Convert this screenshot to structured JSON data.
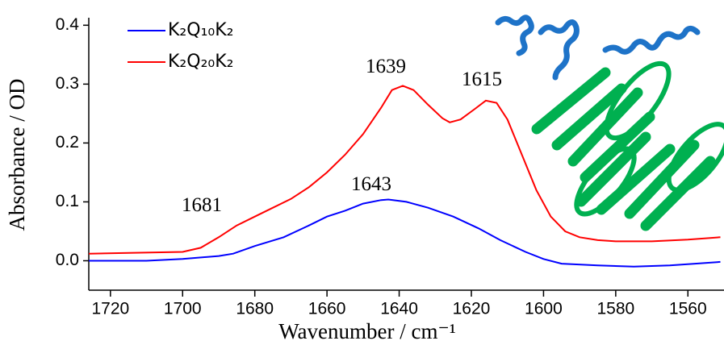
{
  "chart_data": {
    "type": "line",
    "xlabel": "Wavenumber / cm⁻¹",
    "ylabel": "Absorbance / OD",
    "xlim": [
      1726,
      1550
    ],
    "ylim": [
      -0.05,
      0.41
    ],
    "xticks": [
      1720,
      1700,
      1680,
      1660,
      1640,
      1620,
      1600,
      1580,
      1560
    ],
    "yticks": [
      {
        "value": 0,
        "label": "0.0"
      },
      0.1,
      0.2,
      0.3,
      0.4
    ],
    "legend": "upper left",
    "series": [
      {
        "name": "K₂Q₁₀K₂",
        "color": "#0000ff",
        "x": [
          1726,
          1710,
          1700,
          1690,
          1686,
          1680,
          1672,
          1665,
          1660,
          1655,
          1650,
          1645,
          1643,
          1638,
          1632,
          1625,
          1618,
          1612,
          1605,
          1600,
          1595,
          1585,
          1575,
          1565,
          1558,
          1551
        ],
        "values": [
          0.0,
          0.0,
          0.003,
          0.008,
          0.012,
          0.025,
          0.04,
          0.06,
          0.075,
          0.085,
          0.097,
          0.103,
          0.104,
          0.1,
          0.09,
          0.075,
          0.055,
          0.035,
          0.015,
          0.003,
          -0.005,
          -0.008,
          -0.01,
          -0.008,
          -0.005,
          -0.002
        ]
      },
      {
        "name": "K₂Q₂₀K₂",
        "color": "#ff0000",
        "x": [
          1726,
          1700,
          1695,
          1690,
          1685,
          1680,
          1675,
          1670,
          1665,
          1660,
          1655,
          1650,
          1645,
          1642,
          1639,
          1636,
          1632,
          1628,
          1626,
          1623,
          1619,
          1616,
          1613,
          1610,
          1606,
          1602,
          1598,
          1594,
          1590,
          1585,
          1580,
          1570,
          1560,
          1551
        ],
        "values": [
          0.012,
          0.015,
          0.022,
          0.04,
          0.06,
          0.075,
          0.09,
          0.105,
          0.125,
          0.15,
          0.18,
          0.215,
          0.26,
          0.29,
          0.297,
          0.29,
          0.265,
          0.242,
          0.235,
          0.24,
          0.258,
          0.272,
          0.268,
          0.24,
          0.18,
          0.12,
          0.075,
          0.05,
          0.04,
          0.035,
          0.033,
          0.033,
          0.036,
          0.04
        ]
      }
    ],
    "annotations": [
      "1681",
      "1639",
      "1615",
      "1643"
    ]
  }
}
